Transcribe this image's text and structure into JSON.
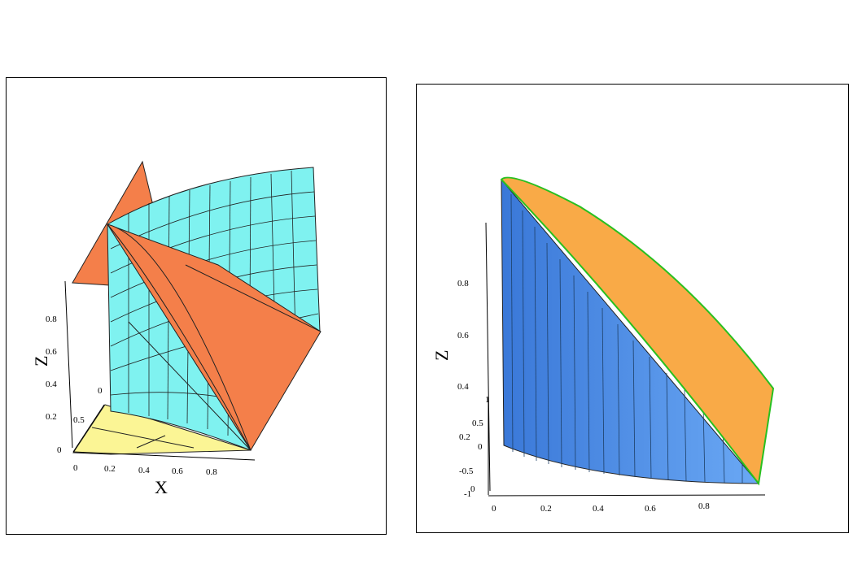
{
  "left": {
    "x_label": "X",
    "z_label": "Z",
    "x_ticks": [
      "0",
      "0.2",
      "0.4",
      "0.6",
      "0.8"
    ],
    "z_ticks": [
      "0.2",
      "0.4",
      "0.6",
      "0.8"
    ],
    "y_ticks": [
      "0",
      "0.5",
      "0"
    ],
    "colors": {
      "cylinder": "#7ff2f0",
      "plane": "#f47f4a",
      "base": "#fbf595"
    }
  },
  "right": {
    "z_label": "Z",
    "x_ticks": [
      "0",
      "0.2",
      "0.4",
      "0.6",
      "0.8"
    ],
    "z_ticks": [
      "0.4",
      "0.6",
      "0.8"
    ],
    "y_ticks": [
      "1",
      "0.5",
      "0.2",
      "0",
      "-0.5",
      "-1"
    ],
    "y_extra": "0",
    "colors": {
      "wall": "#4f8fe6",
      "top": "#f9aa47",
      "edge": "#28c020"
    }
  }
}
